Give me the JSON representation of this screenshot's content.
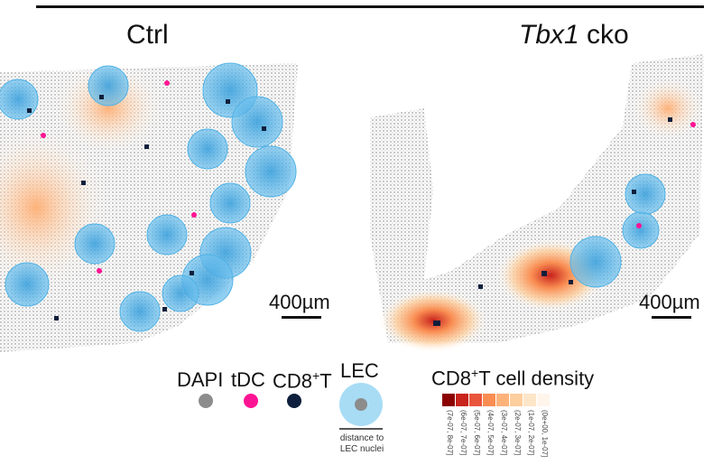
{
  "panels": [
    {
      "title": "Ctrl",
      "scale_label": "400µm"
    },
    {
      "title": "Tbx1",
      "title_suffix": " cko",
      "scale_label": "400µm"
    }
  ],
  "legend": {
    "items": [
      {
        "label": "DAPI",
        "color": "#8c8c8c"
      },
      {
        "label": "tDC",
        "color": "#ff1493"
      },
      {
        "label": "CD8",
        "label_sup": "+",
        "label_after": "T",
        "color": "#0d1f3c"
      },
      {
        "label": "LEC",
        "color": "#8fd0f0"
      }
    ],
    "lec_note_line1": "distance to",
    "lec_note_line2": "LEC nuclei",
    "density_title_pre": "CD8",
    "density_title_sup": "+",
    "density_title_post": "T cell density",
    "density_bins": [
      {
        "label": "(7e-07, 8e-07]",
        "color": "#8b0000"
      },
      {
        "label": "(6e-07, 7e-07]",
        "color": "#c8231c"
      },
      {
        "label": "(5e-07, 6e-07]",
        "color": "#e8553a"
      },
      {
        "label": "(4e-07, 5e-07]",
        "color": "#f98d52"
      },
      {
        "label": "(3e-07, 4e-07]",
        "color": "#fdb27a"
      },
      {
        "label": "(2e-07, 3e-07]",
        "color": "#fdcf9f"
      },
      {
        "label": "(1e-07, 2e-07]",
        "color": "#fde5c8"
      },
      {
        "label": "(0e+00, 1e-07]",
        "color": "#fff5eb"
      }
    ]
  }
}
